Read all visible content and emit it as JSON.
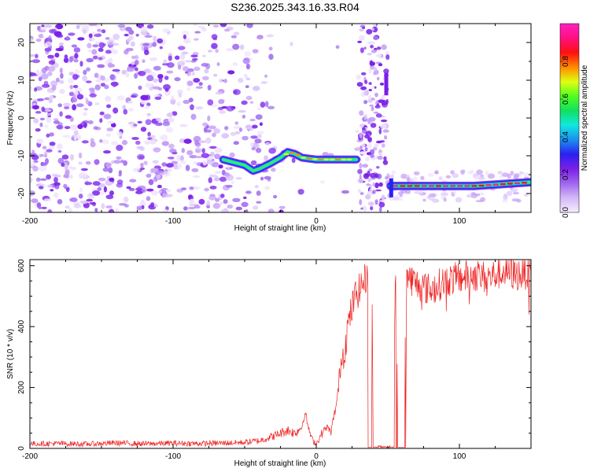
{
  "title": "S236.2025.343.16.33.R04",
  "chart_data": [
    {
      "type": "heatmap",
      "xlabel": "Height of straight line (km)",
      "ylabel": "Frequency (Hz)",
      "xlim": [
        -200,
        150
      ],
      "ylim": [
        -25,
        25
      ],
      "xticks": [
        -200,
        -100,
        0,
        100
      ],
      "yticks": [
        -20,
        -10,
        0,
        10,
        20
      ],
      "colorbar": {
        "label": "Normalized spectral amplitude",
        "range": [
          0,
          1
        ],
        "ticks": [
          "0.0",
          "0.2",
          "0.4",
          "0.6",
          "0.8"
        ],
        "tick_values": [
          0,
          0.2,
          0.4,
          0.6,
          0.8
        ],
        "colors": [
          "#f6eefe",
          "#d4b8f7",
          "#a066f0",
          "#7c1fe8",
          "#2a20f0",
          "#1a90f0",
          "#10e8e0",
          "#10e060",
          "#50ff20",
          "#e0ff10",
          "#ff8a00",
          "#ff1010",
          "#ff1080",
          "#ff20c0"
        ]
      },
      "ridge": [
        {
          "x": -65,
          "y": -11
        },
        {
          "x": -55,
          "y": -12
        },
        {
          "x": -50,
          "y": -12.5
        },
        {
          "x": -44,
          "y": -14
        },
        {
          "x": -40,
          "y": -13.5
        },
        {
          "x": -32,
          "y": -12
        },
        {
          "x": -25,
          "y": -10.5
        },
        {
          "x": -20,
          "y": -9
        },
        {
          "x": -15,
          "y": -9.5
        },
        {
          "x": -10,
          "y": -10.5
        },
        {
          "x": 0,
          "y": -11
        },
        {
          "x": 10,
          "y": -11
        },
        {
          "x": 20,
          "y": -11
        },
        {
          "x": 28,
          "y": -11
        },
        {
          "x": 52,
          "y": -18
        },
        {
          "x": 70,
          "y": -18
        },
        {
          "x": 90,
          "y": -18
        },
        {
          "x": 110,
          "y": -18
        },
        {
          "x": 130,
          "y": -17.5
        },
        {
          "x": 150,
          "y": -17
        }
      ]
    },
    {
      "type": "line",
      "xlabel": "Height of straight line (km)",
      "ylabel": "SNR (10 * v/v)",
      "xlim": [
        -200,
        150
      ],
      "ylim": [
        0,
        620
      ],
      "xticks": [
        -200,
        -100,
        0,
        100
      ],
      "yticks": [
        0,
        200,
        400,
        600
      ],
      "series": [
        {
          "color": "#ee2020",
          "x": [
            -200,
            -180,
            -160,
            -140,
            -120,
            -100,
            -80,
            -60,
            -50,
            -40,
            -30,
            -20,
            -15,
            -10,
            -8,
            -5,
            -3,
            0,
            3,
            5,
            8,
            10,
            13,
            15,
            17,
            20,
            22,
            25,
            27,
            30,
            32,
            35,
            36,
            36.5,
            37,
            38,
            39,
            40,
            45,
            50,
            54.5,
            55,
            56,
            57,
            58,
            59,
            60,
            61,
            62,
            62.5,
            63,
            65,
            70,
            80,
            90,
            100,
            110,
            120,
            130,
            140,
            150
          ],
          "y": [
            15,
            16,
            14,
            18,
            15,
            17,
            16,
            18,
            20,
            25,
            40,
            60,
            50,
            70,
            120,
            60,
            30,
            15,
            40,
            60,
            70,
            50,
            120,
            170,
            280,
            330,
            400,
            460,
            500,
            520,
            540,
            560,
            580,
            0,
            0,
            0,
            550,
            0,
            0,
            0,
            0,
            600,
            580,
            0,
            0,
            0,
            0,
            0,
            580,
            0,
            570,
            560,
            540,
            520,
            550,
            560,
            570,
            560,
            580,
            570,
            580
          ]
        }
      ]
    }
  ]
}
